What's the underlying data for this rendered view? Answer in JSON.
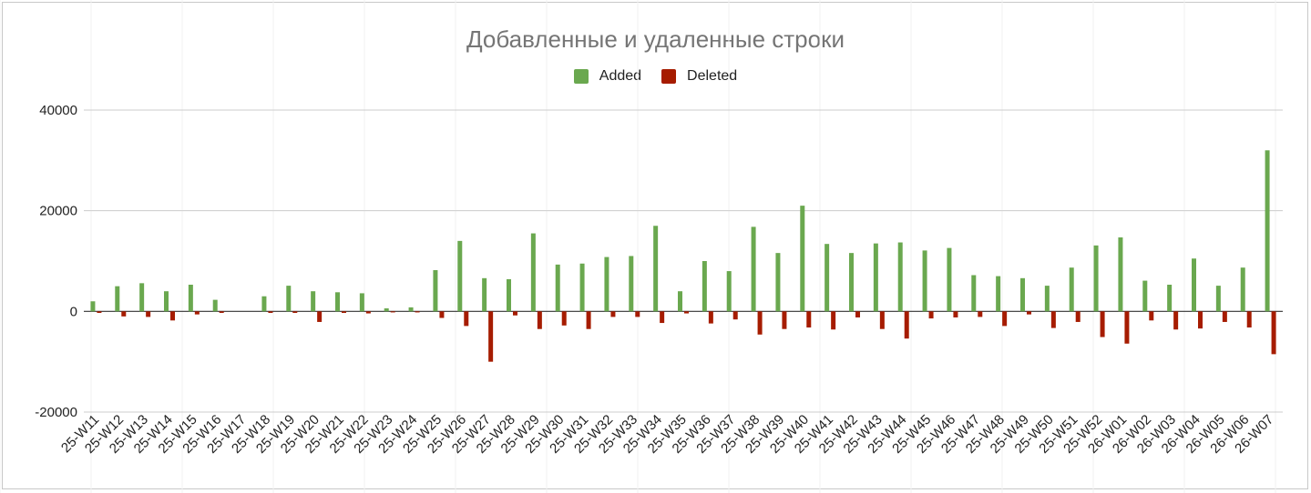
{
  "chart_data": {
    "type": "bar",
    "title": "Добавленные и удаленные строки",
    "xlabel": "",
    "ylabel": "",
    "ylim": [
      -20000,
      40000
    ],
    "yticks": [
      40000,
      20000,
      0,
      -20000
    ],
    "ytick_labels": [
      "40000",
      "20000",
      "0",
      "-20000"
    ],
    "grid": true,
    "legend_position": "top-center",
    "categories": [
      "25-W11",
      "25-W12",
      "25-W13",
      "25-W14",
      "25-W15",
      "25-W16",
      "25-W17",
      "25-W18",
      "25-W19",
      "25-W20",
      "25-W21",
      "25-W22",
      "25-W23",
      "25-W24",
      "25-W25",
      "25-W26",
      "25-W27",
      "25-W28",
      "25-W29",
      "25-W30",
      "25-W31",
      "25-W32",
      "25-W33",
      "25-W34",
      "25-W35",
      "25-W36",
      "25-W37",
      "25-W38",
      "25-W39",
      "25-W40",
      "25-W41",
      "25-W42",
      "25-W43",
      "25-W44",
      "25-W45",
      "25-W46",
      "25-W47",
      "25-W48",
      "25-W49",
      "25-W50",
      "25-W51",
      "25-W52",
      "26-W01",
      "26-W02",
      "26-W03",
      "26-W04",
      "26-W05",
      "26-W06",
      "26-W07"
    ],
    "series": [
      {
        "name": "Added",
        "color": "#6aa84f",
        "values": [
          2000,
          5000,
          5600,
          4000,
          5300,
          2300,
          0,
          3000,
          5100,
          4000,
          3800,
          3600,
          600,
          800,
          8200,
          14000,
          6600,
          6400,
          15500,
          9300,
          9500,
          10800,
          11000,
          17000,
          4000,
          10000,
          8000,
          16800,
          11600,
          21000,
          13400,
          11600,
          13500,
          13700,
          12100,
          12600,
          7200,
          7000,
          6600,
          5100,
          8700,
          13100,
          14700,
          6100,
          5300,
          10500,
          5100,
          8700,
          32000
        ]
      },
      {
        "name": "Deleted",
        "color": "#a61c00",
        "values": [
          -300,
          -1000,
          -1100,
          -1800,
          -600,
          -300,
          0,
          -300,
          -300,
          -2100,
          -300,
          -400,
          -200,
          -200,
          -1300,
          -2900,
          -10000,
          -800,
          -3500,
          -2800,
          -3500,
          -1100,
          -1100,
          -2300,
          -400,
          -2400,
          -1600,
          -4600,
          -3500,
          -3200,
          -3600,
          -1200,
          -3500,
          -5400,
          -1400,
          -1200,
          -1100,
          -2900,
          -600,
          -3300,
          -2100,
          -5100,
          -6400,
          -1800,
          -3600,
          -3400,
          -2100,
          -3200,
          -8500
        ]
      }
    ]
  }
}
